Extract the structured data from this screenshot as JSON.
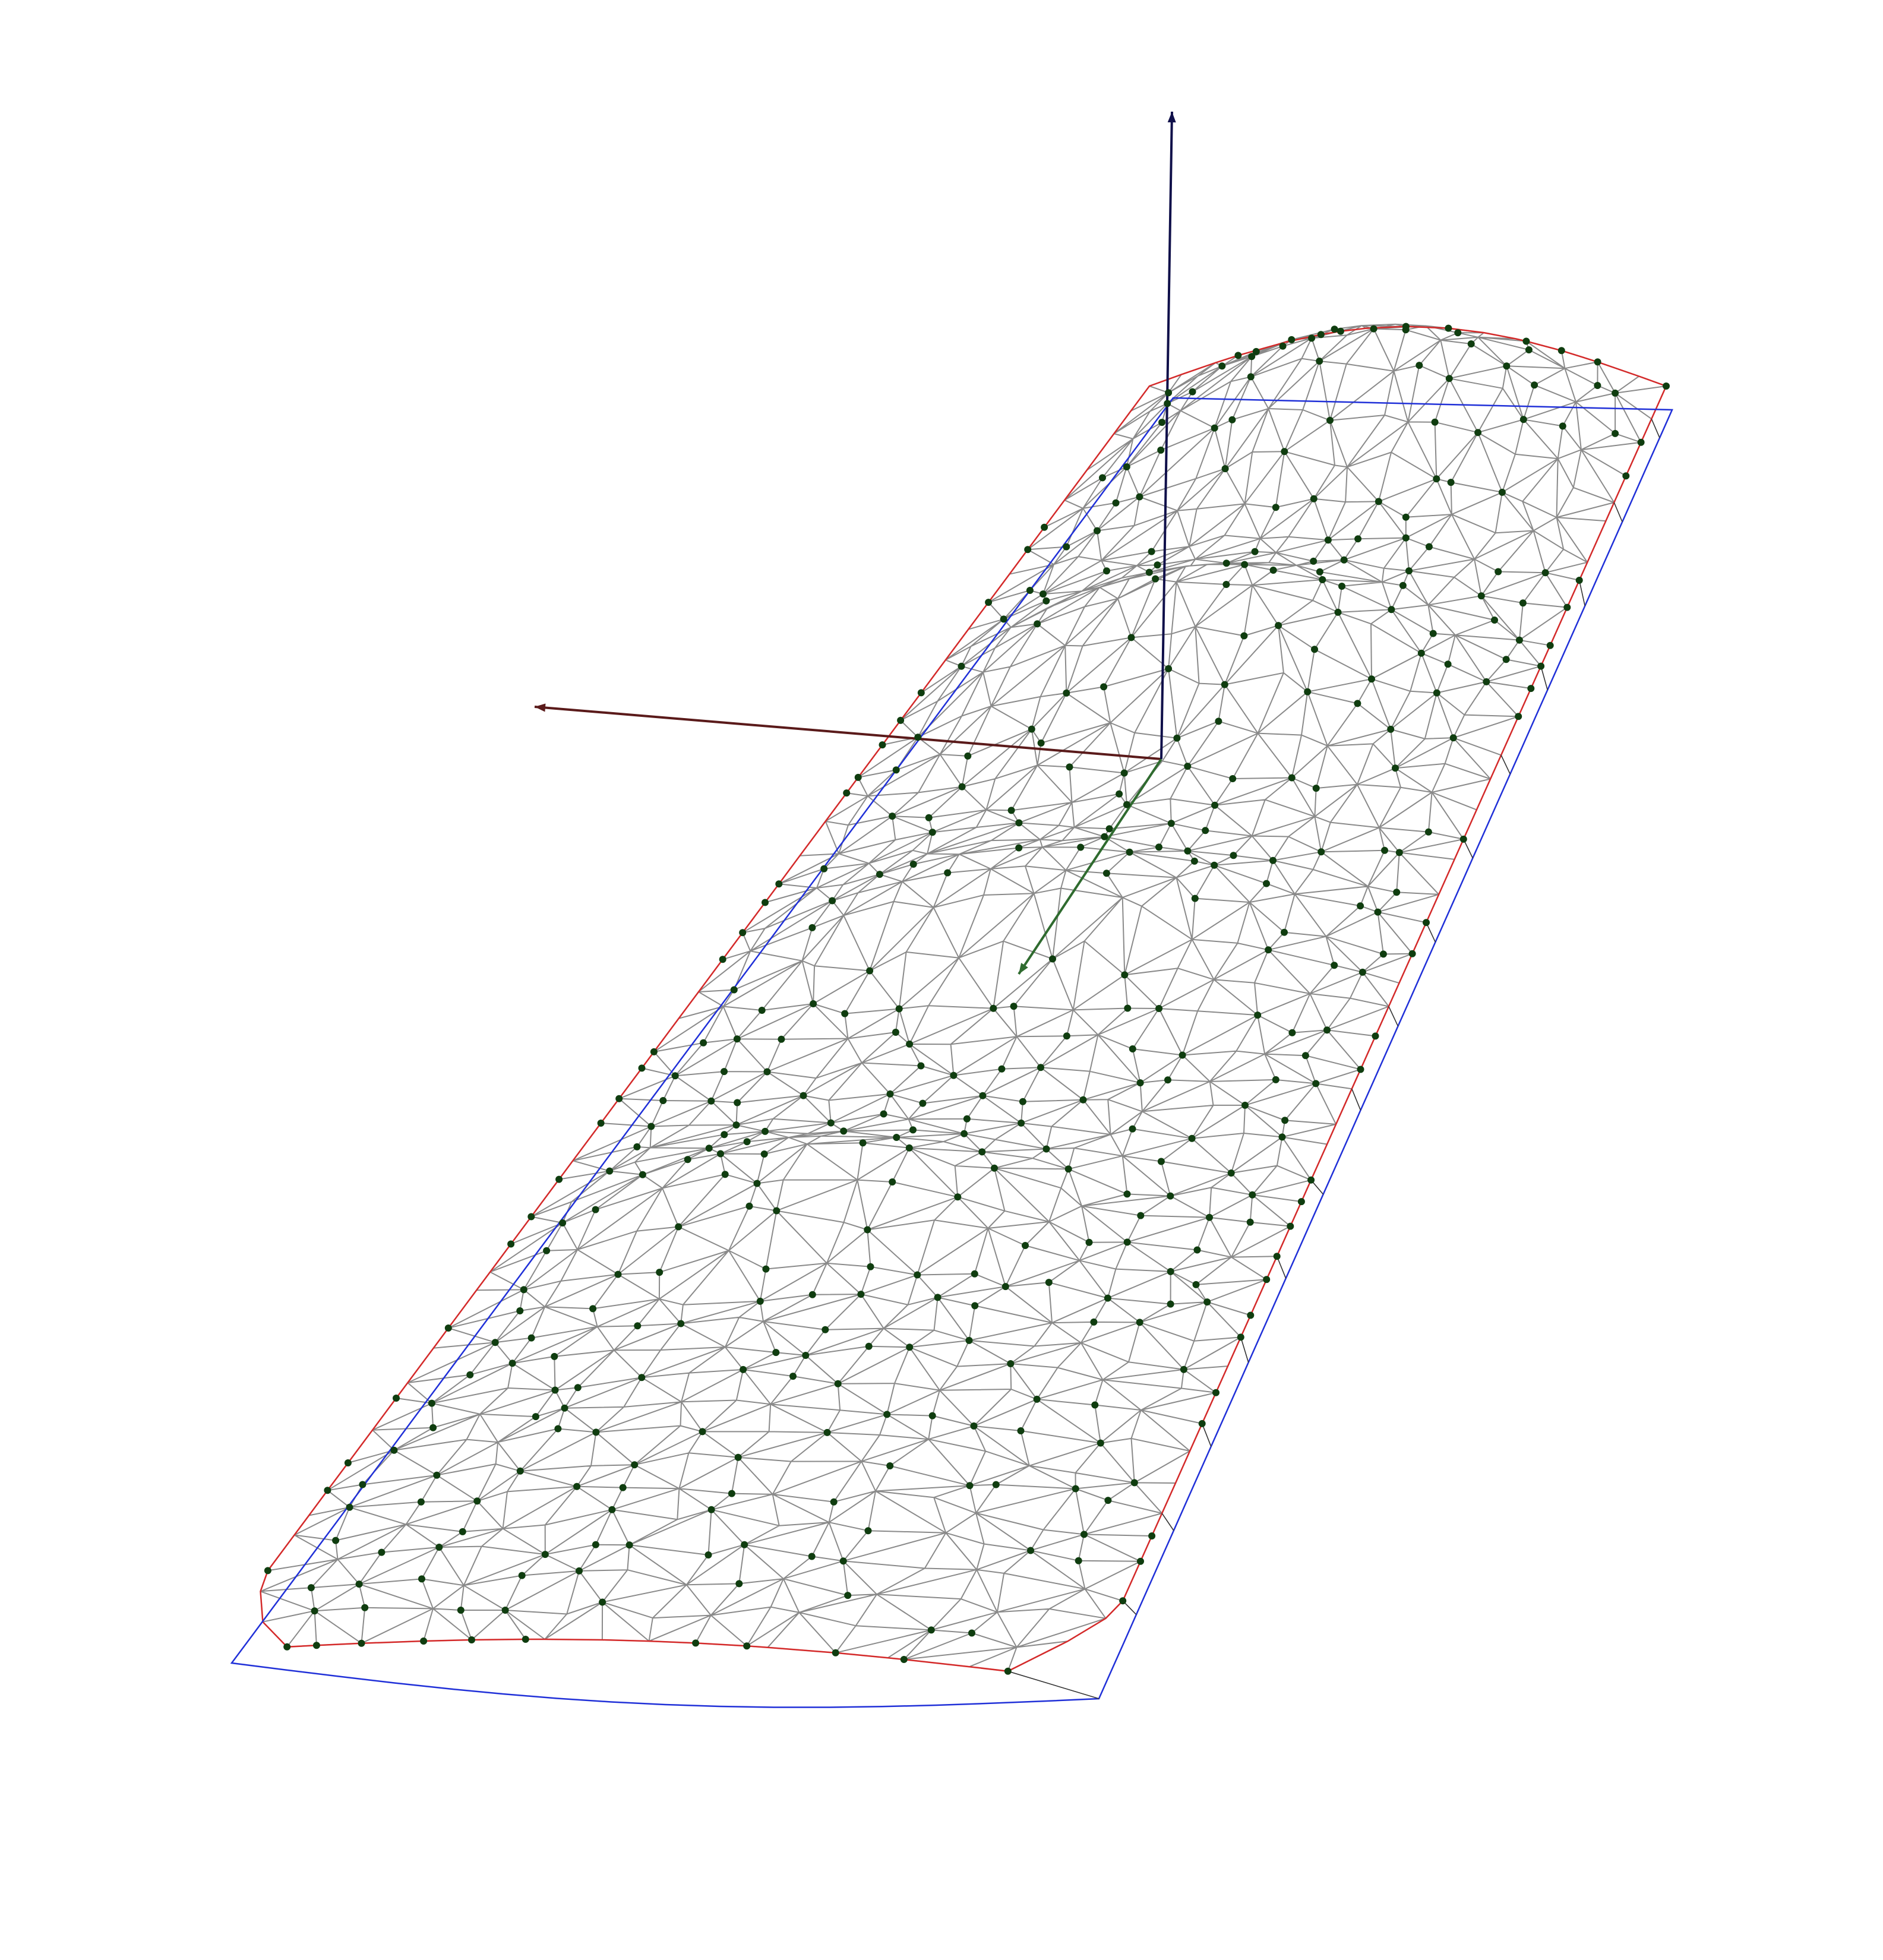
{
  "scene": {
    "kind": "3D terrain TIN wireframe viewport",
    "view": "perspective",
    "background_color": "#ffffff",
    "mesh_edge_color": "#8a8a8a",
    "vertex_color": "#0f3d0f",
    "boundary_top_color": "#d42a2a",
    "boundary_base_color": "#2030d8",
    "axes": [
      {
        "name": "x",
        "color": "#5a1a1a"
      },
      {
        "name": "y",
        "color": "#2f6b2f"
      },
      {
        "name": "z",
        "color": "#10104a"
      }
    ],
    "labels_present": false,
    "terrain": {
      "ridges": 4,
      "description_shown": "rolling elongated terrain block with ridge lines and a raised far end"
    }
  }
}
